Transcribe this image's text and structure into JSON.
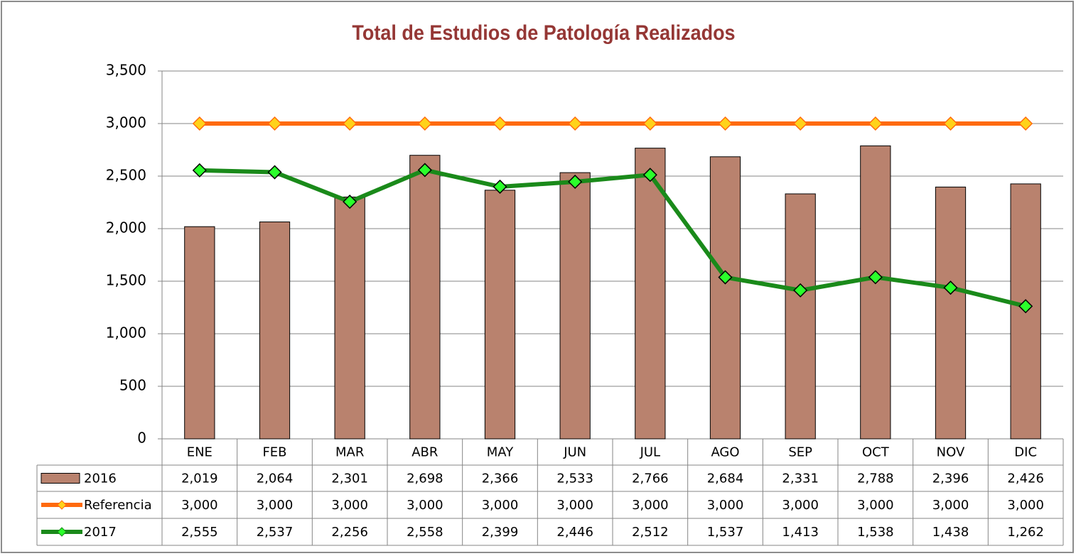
{
  "chart_data": {
    "type": "bar",
    "title": "Total de Estudios de Patología Realizados",
    "categories": [
      "ENE",
      "FEB",
      "MAR",
      "ABR",
      "MAY",
      "JUN",
      "JUL",
      "AGO",
      "SEP",
      "OCT",
      "NOV",
      "DIC"
    ],
    "series": [
      {
        "name": "2016",
        "type": "bar",
        "color": "#b9826e",
        "values": [
          2019,
          2064,
          2301,
          2698,
          2366,
          2533,
          2766,
          2684,
          2331,
          2788,
          2396,
          2426
        ],
        "value_labels": [
          "2,019",
          "2,064",
          "2,301",
          "2,698",
          "2,366",
          "2,533",
          "2,766",
          "2,684",
          "2,331",
          "2,788",
          "2,396",
          "2,426"
        ]
      },
      {
        "name": "Referencia",
        "type": "line",
        "color": "#ff6a0e",
        "marker_color": "#ffd21a",
        "values": [
          3000,
          3000,
          3000,
          3000,
          3000,
          3000,
          3000,
          3000,
          3000,
          3000,
          3000,
          3000
        ],
        "value_labels": [
          "3,000",
          "3,000",
          "3,000",
          "3,000",
          "3,000",
          "3,000",
          "3,000",
          "3,000",
          "3,000",
          "3,000",
          "3,000",
          "3,000"
        ]
      },
      {
        "name": "2017",
        "type": "line",
        "color": "#1a8a1a",
        "marker_color": "#2bff2b",
        "values": [
          2555,
          2537,
          2256,
          2558,
          2399,
          2446,
          2512,
          1537,
          1413,
          1538,
          1438,
          1262
        ],
        "value_labels": [
          "2,555",
          "2,537",
          "2,256",
          "2,558",
          "2,399",
          "2,446",
          "2,512",
          "1,537",
          "1,413",
          "1,538",
          "1,438",
          "1,262"
        ]
      }
    ],
    "ylim": [
      0,
      3500
    ],
    "yticks": [
      0,
      500,
      {
        "value": 1000,
        "label": "1,000"
      },
      {
        "value": 1500,
        "label": "1,500"
      },
      {
        "value": 2000,
        "label": "2,000"
      },
      {
        "value": 2500,
        "label": "2,500"
      },
      {
        "value": 3000,
        "label": "3,000"
      },
      {
        "value": 3500,
        "label": "3,500"
      }
    ],
    "grid": true
  }
}
